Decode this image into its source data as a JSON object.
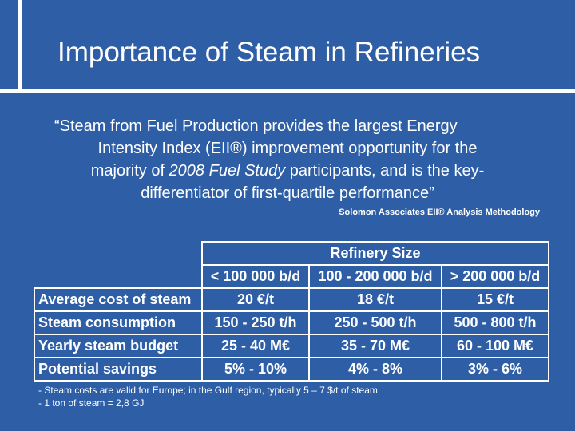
{
  "slide": {
    "title": "Importance of Steam in Refineries",
    "quote": {
      "line1": "“Steam from Fuel Production provides the largest Energy",
      "line2": "Intensity Index (EII®) improvement opportunity for the",
      "line3_pre": "majority of ",
      "line3_italic": "2008 Fuel Study",
      "line3_post": " participants, and is the key-",
      "line4": "differentiator of first-quartile performance”"
    },
    "source": "Solomon Associates EII® Analysis Methodology"
  },
  "table": {
    "group_header": "Refinery Size",
    "columns": [
      "< 100 000 b/d",
      "100 - 200 000 b/d",
      "> 200 000 b/d"
    ],
    "rows": [
      {
        "label": "Average cost of steam",
        "values": [
          "20 €/t",
          "18 €/t",
          "15 €/t"
        ]
      },
      {
        "label": "Steam consumption",
        "values": [
          "150 - 250 t/h",
          "250 - 500 t/h",
          "500 - 800 t/h"
        ]
      },
      {
        "label": "Yearly steam budget",
        "values": [
          "25 - 40 M€",
          "35 - 70 M€",
          "60 - 100 M€"
        ]
      },
      {
        "label": "Potential savings",
        "values": [
          "5% - 10%",
          "4% - 8%",
          "3% - 6%"
        ]
      }
    ]
  },
  "notes": {
    "line1": "- Steam costs are valid for Europe; in the Gulf region, typically 5 – 7 $/t  of steam",
    "line2": "- 1 ton of steam = 2,8 GJ"
  }
}
